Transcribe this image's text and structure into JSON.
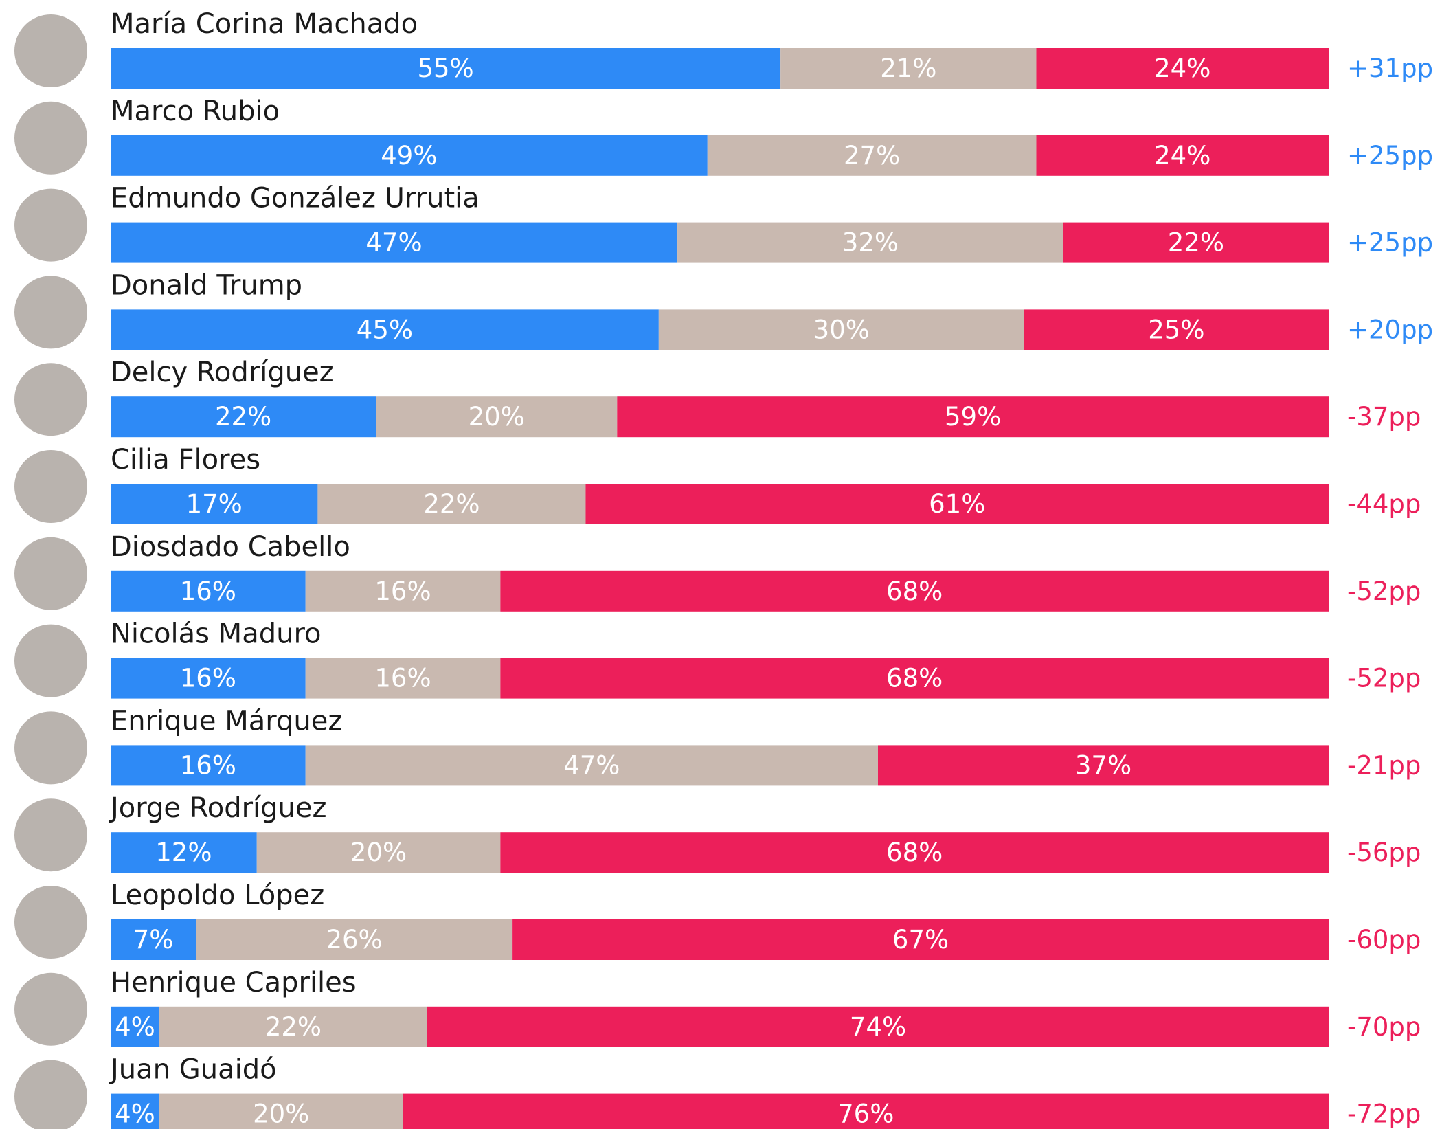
{
  "chart_data": {
    "type": "stacked-bar-horizontal",
    "categories": [
      "María Corina Machado",
      "Marco Rubio",
      "Edmundo González Urrutia",
      "Donald Trump",
      "Delcy Rodríguez",
      "Cilia Flores",
      "Diosdado Cabello",
      "Nicolás Maduro",
      "Enrique Márquez",
      "Jorge Rodríguez",
      "Leopoldo López",
      "Henrique Capriles",
      "Juan Guaidó"
    ],
    "series": [
      {
        "color": "#2e8af6",
        "values": [
          55,
          49,
          47,
          45,
          22,
          17,
          16,
          16,
          16,
          12,
          7,
          4,
          4
        ],
        "value_labels": [
          "55%",
          "49%",
          "47%",
          "45%",
          "22%",
          "17%",
          "16%",
          "16%",
          "16%",
          "12%",
          "7%",
          "4%",
          "4%"
        ]
      },
      {
        "color": "#c9b9b0",
        "values": [
          21,
          27,
          32,
          30,
          20,
          22,
          16,
          16,
          47,
          20,
          26,
          22,
          20
        ],
        "value_labels": [
          "21%",
          "27%",
          "32%",
          "30%",
          "20%",
          "22%",
          "16%",
          "16%",
          "47%",
          "20%",
          "26%",
          "22%",
          "20%"
        ]
      },
      {
        "color": "#ec1f5a",
        "values": [
          24,
          24,
          22,
          25,
          59,
          61,
          68,
          68,
          37,
          68,
          67,
          74,
          76
        ],
        "value_labels": [
          "24%",
          "24%",
          "22%",
          "25%",
          "59%",
          "61%",
          "68%",
          "68%",
          "37%",
          "68%",
          "67%",
          "74%",
          "76%"
        ]
      }
    ],
    "net": {
      "values": [
        31,
        25,
        25,
        20,
        -37,
        -44,
        -52,
        -52,
        -21,
        -56,
        -60,
        -70,
        -72
      ],
      "value_labels": [
        "+31pp",
        "+25pp",
        "+25pp",
        "+20pp",
        "-37pp",
        "-44pp",
        "-52pp",
        "-52pp",
        "-21pp",
        "-56pp",
        "-60pp",
        "-70pp",
        "-72pp"
      ]
    }
  }
}
